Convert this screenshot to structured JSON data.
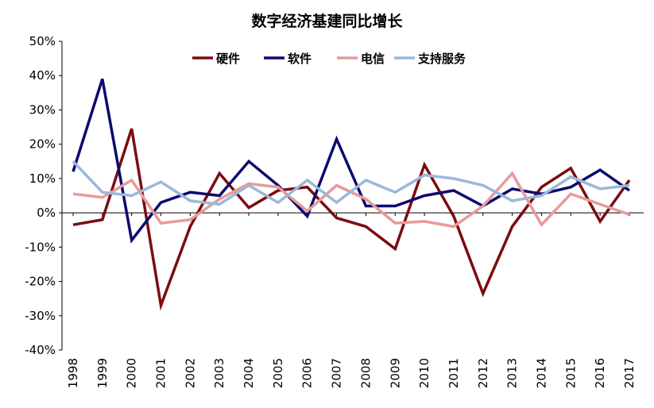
{
  "chart_data": {
    "type": "line",
    "title": "数字经济基建同比增长",
    "xlabel": "",
    "ylabel": "",
    "categories": [
      "1998",
      "1999",
      "2000",
      "2001",
      "2002",
      "2003",
      "2004",
      "2005",
      "2006",
      "2007",
      "2008",
      "2009",
      "2010",
      "2011",
      "2012",
      "2013",
      "2014",
      "2015",
      "2016",
      "2017"
    ],
    "y_ticks": [
      "-40%",
      "-30%",
      "-20%",
      "-10%",
      "0%",
      "10%",
      "20%",
      "30%",
      "40%",
      "50%"
    ],
    "ylim": [
      -40,
      50
    ],
    "legend_position": "top-center",
    "series": [
      {
        "name": "硬件",
        "color": "#7b0c10",
        "values": [
          -3.5,
          -2,
          24.5,
          -27,
          -4,
          11.5,
          1.5,
          6.5,
          7.5,
          -1.5,
          -4,
          -10.5,
          14,
          -1,
          -23.5,
          -4,
          7.5,
          13,
          -2.5,
          9.5
        ]
      },
      {
        "name": "软件",
        "color": "#0b0b6e",
        "values": [
          12,
          39,
          -8,
          3,
          6,
          5,
          15,
          8,
          -1,
          21.5,
          2,
          2,
          5,
          6.5,
          2,
          7,
          5.5,
          7.5,
          12.5,
          6.5
        ]
      },
      {
        "name": "电信",
        "color": "#e79a9a",
        "values": [
          5.5,
          4.5,
          9.5,
          -3,
          -2,
          4,
          8.5,
          7.5,
          0.5,
          8,
          4,
          -3,
          -2.5,
          -4,
          2,
          11.5,
          -3.5,
          5.5,
          2.5,
          -0.5
        ]
      },
      {
        "name": "支持服务",
        "color": "#9bb8da",
        "values": [
          15,
          6,
          5,
          9,
          3.5,
          2.5,
          8,
          3,
          9.5,
          3,
          9.5,
          6,
          11,
          10,
          8,
          3.5,
          5,
          10.5,
          7,
          8
        ]
      }
    ]
  }
}
